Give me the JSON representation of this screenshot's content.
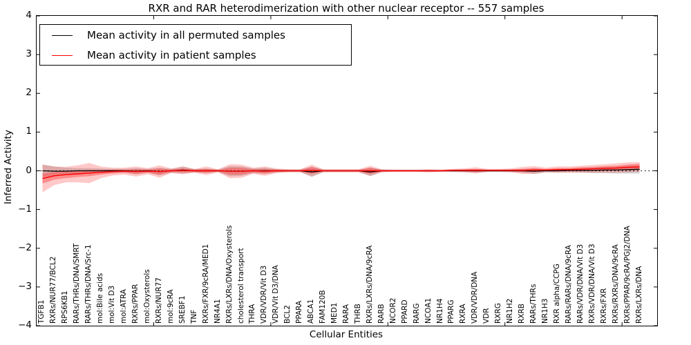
{
  "title": "RXR and RAR heterodimerization with other nuclear receptor -- 557 samples",
  "axes": {
    "xlabel": "Cellular Entities",
    "ylabel": "Inferred Activity",
    "ytick_labels": [
      "4",
      "3",
      "2",
      "1",
      "0",
      "−1",
      "−2",
      "−3",
      "−4"
    ]
  },
  "legend": {
    "entries": [
      {
        "label": "Mean activity in all permuted samples",
        "color": "#000000"
      },
      {
        "label": "Mean activity in patient samples",
        "color": "#ff0000"
      }
    ]
  },
  "chart_data": {
    "type": "line",
    "title": "RXR and RAR heterodimerization with other nuclear receptor -- 557 samples",
    "xlabel": "Cellular Entities",
    "ylabel": "Inferred Activity",
    "ylim": [
      -4,
      4
    ],
    "yticks": [
      4,
      3,
      2,
      1,
      0,
      -1,
      -2,
      -3,
      -4
    ],
    "x_axis_span": 53,
    "xtick_units": [
      10,
      20,
      30,
      40,
      50
    ],
    "grid": false,
    "zero_line": {
      "show": true,
      "style": "dotted",
      "color": "#000000"
    },
    "legend_position": "upper-left",
    "band_colors": {
      "permuted": "#999999",
      "patient": "#ff4d4d"
    },
    "categories": [
      "TGFB1",
      "RXRs/NUR77/BCL2",
      "RPS6KB1",
      "RARs/THRs/DNA/SMRT",
      "RARs/THRs/DNA/Src-1",
      "mol:Bile acids",
      "mol:Vit D3",
      "mol:ATRA",
      "RXRs/PPAR",
      "mol:Oxysterols",
      "RXRs/NUR77",
      "mol:9cRA",
      "SREBF1",
      "TNF",
      "RXRs/FXR/9cRA/MED1",
      "NR4A1",
      "RXRs/LXRs/DNA/Oxysterols",
      "cholesterol transport",
      "THRA",
      "VDR/VDR/Vit D3",
      "VDR/Vit D3/DNA",
      "BCL2",
      "PPARA",
      "ABCA1",
      "FAM120B",
      "MED1",
      "RARA",
      "THRB",
      "RXRs/LXRs/DNA/9cRA",
      "RARB",
      "NCOR2",
      "PPARD",
      "RARG",
      "NCOA1",
      "NR1H4",
      "PPARG",
      "RXRA",
      "VDR/VDR/DNA",
      "VDR",
      "RXRG",
      "NR1H2",
      "RXRB",
      "RARs/THRs",
      "NR1H3",
      "RXR alpha/CCPG",
      "RARs/RARs/DNA/9cRA",
      "RARs/VDR/DNA/Vit D3",
      "RXRs/VDR/DNA/Vit D3",
      "RXRs/FXR",
      "RXRs/RXRs/DNA/9cRA",
      "RXRs/PPAR/9cRA/PGJ2/DNA",
      "RXRs/LXRs/DNA"
    ],
    "series": [
      {
        "name": "Mean activity in all permuted samples",
        "color": "#000000",
        "mean": [
          0,
          -0.01,
          -0.01,
          0,
          0,
          0,
          0,
          0,
          -0.01,
          0,
          -0.02,
          0,
          0.02,
          0,
          0,
          0,
          -0.01,
          -0.01,
          0,
          0,
          0,
          0,
          0,
          -0.03,
          0,
          0,
          0,
          0,
          -0.03,
          0,
          0,
          0,
          0,
          0,
          0,
          0,
          0,
          0,
          0,
          0,
          0,
          0,
          -0.01,
          0,
          0,
          0.01,
          0.01,
          0.01,
          0.02,
          0.02,
          0.03,
          0.04
        ],
        "band_halfwidth": [
          0.16,
          0.12,
          0.09,
          0.07,
          0.07,
          0.06,
          0.05,
          0.05,
          0.08,
          0.05,
          0.1,
          0.05,
          0.09,
          0.04,
          0.06,
          0.03,
          0.13,
          0.12,
          0.06,
          0.08,
          0.04,
          0.03,
          0.03,
          0.13,
          0.03,
          0.03,
          0.03,
          0.03,
          0.11,
          0.03,
          0.02,
          0.02,
          0.02,
          0.03,
          0.02,
          0.03,
          0.03,
          0.05,
          0.03,
          0.03,
          0.03,
          0.05,
          0.07,
          0.04,
          0.05,
          0.05,
          0.06,
          0.07,
          0.08,
          0.09,
          0.1,
          0.11
        ]
      },
      {
        "name": "Mean activity in patient samples",
        "color": "#ff0000",
        "mean": [
          -0.2,
          -0.13,
          -0.1,
          -0.08,
          -0.06,
          -0.04,
          -0.02,
          -0.01,
          -0.02,
          -0.01,
          -0.02,
          0,
          0.01,
          0,
          0,
          0,
          -0.01,
          -0.01,
          0,
          -0.01,
          0,
          0,
          0,
          0.01,
          0,
          0,
          0,
          0,
          0,
          0,
          0,
          0,
          0,
          0,
          0,
          0.01,
          0.01,
          0.01,
          0.01,
          0.01,
          0.01,
          0.01,
          0.02,
          0.02,
          0.03,
          0.03,
          0.04,
          0.05,
          0.06,
          0.07,
          0.09,
          0.1
        ],
        "band_halfwidth_inner": [
          0.13,
          0.1,
          0.09,
          0.08,
          0.08,
          0.06,
          0.05,
          0.04,
          0.06,
          0.04,
          0.08,
          0.03,
          0.05,
          0.03,
          0.05,
          0.02,
          0.09,
          0.09,
          0.04,
          0.06,
          0.03,
          0.02,
          0.02,
          0.09,
          0.02,
          0.02,
          0.02,
          0.02,
          0.08,
          0.02,
          0.02,
          0.02,
          0.02,
          0.02,
          0.02,
          0.02,
          0.03,
          0.04,
          0.02,
          0.02,
          0.03,
          0.04,
          0.05,
          0.03,
          0.04,
          0.04,
          0.05,
          0.05,
          0.06,
          0.06,
          0.07,
          0.08
        ],
        "band_halfwidth_outer": [
          0.36,
          0.24,
          0.2,
          0.22,
          0.26,
          0.15,
          0.1,
          0.09,
          0.13,
          0.08,
          0.16,
          0.06,
          0.1,
          0.05,
          0.11,
          0.04,
          0.18,
          0.17,
          0.08,
          0.12,
          0.06,
          0.04,
          0.04,
          0.15,
          0.04,
          0.04,
          0.04,
          0.04,
          0.13,
          0.04,
          0.03,
          0.03,
          0.03,
          0.04,
          0.03,
          0.04,
          0.05,
          0.08,
          0.04,
          0.04,
          0.05,
          0.09,
          0.1,
          0.06,
          0.08,
          0.08,
          0.09,
          0.1,
          0.11,
          0.12,
          0.13,
          0.12
        ]
      }
    ]
  }
}
